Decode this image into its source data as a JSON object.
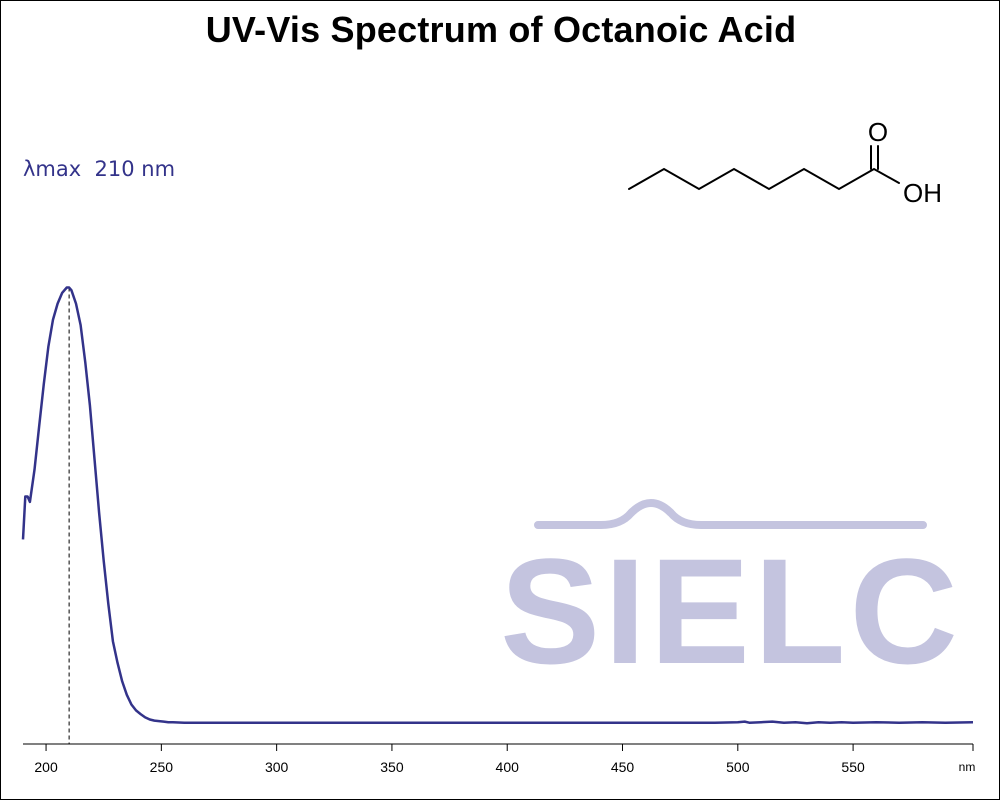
{
  "chart_data": {
    "type": "line",
    "title": "UV-Vis Spectrum of Octanoic Acid",
    "xlabel": "",
    "ylabel": "",
    "x_unit": "nm",
    "xlim": [
      190,
      602
    ],
    "x_ticks": [
      200,
      250,
      300,
      350,
      400,
      450,
      500,
      550
    ],
    "y_ticks_shown": false,
    "grid": false,
    "annotation": {
      "label": "λmax  210 nm",
      "x": 210
    },
    "series": [
      {
        "color": "#33338a",
        "x": [
          190,
          191,
          192,
          193,
          195,
          197,
          199,
          201,
          203,
          205,
          207,
          209,
          210,
          211,
          213,
          215,
          217,
          219,
          221,
          223,
          225,
          227,
          229,
          231,
          233,
          235,
          237,
          239,
          241,
          243,
          245,
          247,
          249,
          251,
          253,
          255,
          260,
          265,
          270,
          275,
          280,
          290,
          300,
          310,
          320,
          330,
          340,
          350,
          360,
          370,
          380,
          390,
          400,
          410,
          420,
          430,
          440,
          450,
          460,
          470,
          480,
          490,
          500,
          503,
          505,
          510,
          515,
          520,
          525,
          530,
          535,
          540,
          545,
          550,
          560,
          570,
          580,
          590,
          602
        ],
        "y": [
          0.35,
          0.43,
          0.43,
          0.42,
          0.48,
          0.56,
          0.64,
          0.71,
          0.76,
          0.79,
          0.81,
          0.82,
          0.82,
          0.815,
          0.79,
          0.75,
          0.68,
          0.6,
          0.5,
          0.4,
          0.31,
          0.23,
          0.16,
          0.12,
          0.085,
          0.06,
          0.042,
          0.031,
          0.024,
          0.018,
          0.014,
          0.012,
          0.011,
          0.01,
          0.009,
          0.009,
          0.008,
          0.008,
          0.008,
          0.008,
          0.008,
          0.008,
          0.008,
          0.008,
          0.008,
          0.008,
          0.008,
          0.008,
          0.008,
          0.008,
          0.008,
          0.008,
          0.008,
          0.008,
          0.008,
          0.008,
          0.008,
          0.008,
          0.008,
          0.008,
          0.008,
          0.008,
          0.009,
          0.01,
          0.008,
          0.009,
          0.01,
          0.008,
          0.009,
          0.007,
          0.009,
          0.008,
          0.009,
          0.008,
          0.009,
          0.008,
          0.009,
          0.008,
          0.009
        ]
      }
    ]
  },
  "structure": {
    "name": "octanoic-acid",
    "atom_labels": {
      "carbonyl_oxygen": "O",
      "hydroxyl": "OH"
    }
  },
  "watermark": {
    "text": "SIELC",
    "color": "#c4c4df"
  }
}
